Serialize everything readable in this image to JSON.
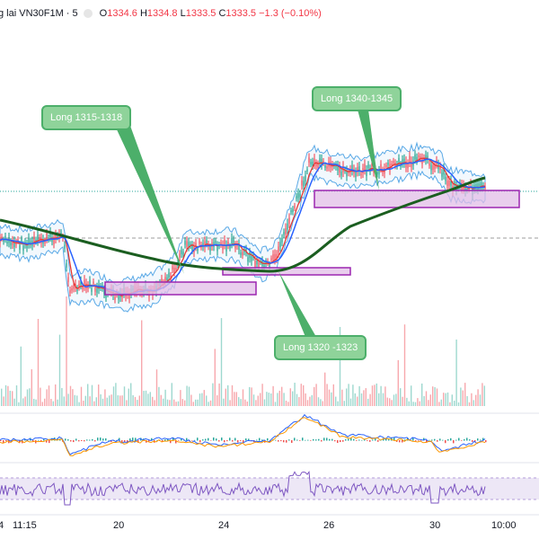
{
  "header": {
    "symbol": "g lai VN30F1M · 5",
    "open_label": "O",
    "open": "1334.6",
    "high_label": "H",
    "high": "1334.8",
    "low_label": "L",
    "low": "1333.5",
    "close_label": "C",
    "close": "1333.5",
    "change": "−1.3 (−0.10%)"
  },
  "annotations": [
    {
      "text": "Long 1315-1318"
    },
    {
      "text": "Long 1340-1345"
    },
    {
      "text": "Long 1320 -1323"
    }
  ],
  "x_axis": {
    "labels": [
      "4",
      "11:15",
      "20",
      "24",
      "26",
      "30",
      "10:00"
    ]
  },
  "colors": {
    "price_up": "#089981",
    "price_down": "#f23645",
    "ma_long": "#1b5e20",
    "ma_fast_blue": "#2962ff",
    "ma_fast_red": "#e53935",
    "band": "#5aa9e6",
    "zone_fill": "#e1bee7",
    "zone_border": "#9c27b0",
    "rsi": "#7e57c2",
    "volume": "#f7a8ad"
  },
  "chart_data": {
    "type": "line",
    "title": "VN30F1M · 5",
    "x": [
      "20",
      "24",
      "26",
      "30"
    ],
    "series": [],
    "annotations": [
      "Long 1315-1318",
      "Long 1340-1345",
      "Long 1320 -1323"
    ],
    "panels": [
      "price",
      "volume",
      "macd",
      "rsi"
    ],
    "grid": true
  }
}
